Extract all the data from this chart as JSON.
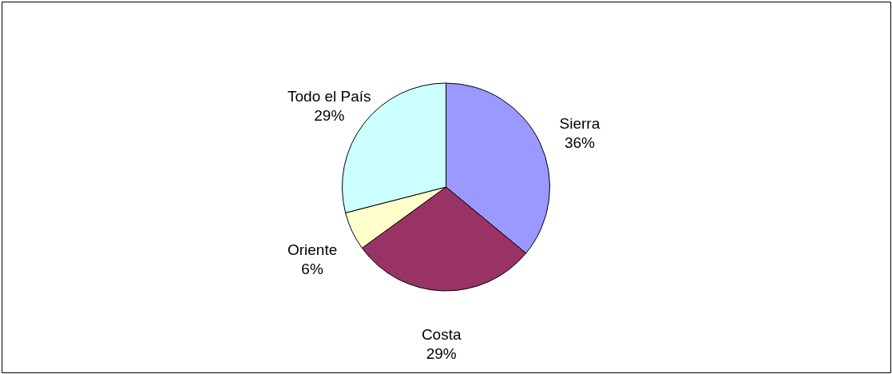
{
  "chart_data": {
    "type": "pie",
    "categories": [
      "Sierra",
      "Costa",
      "Oriente",
      "Todo el País"
    ],
    "values": [
      36,
      29,
      6,
      29
    ],
    "value_labels": [
      "36%",
      "29%",
      "6%",
      "29%"
    ],
    "colors": [
      "#9999ff",
      "#993366",
      "#ffffcc",
      "#ccffff"
    ]
  }
}
